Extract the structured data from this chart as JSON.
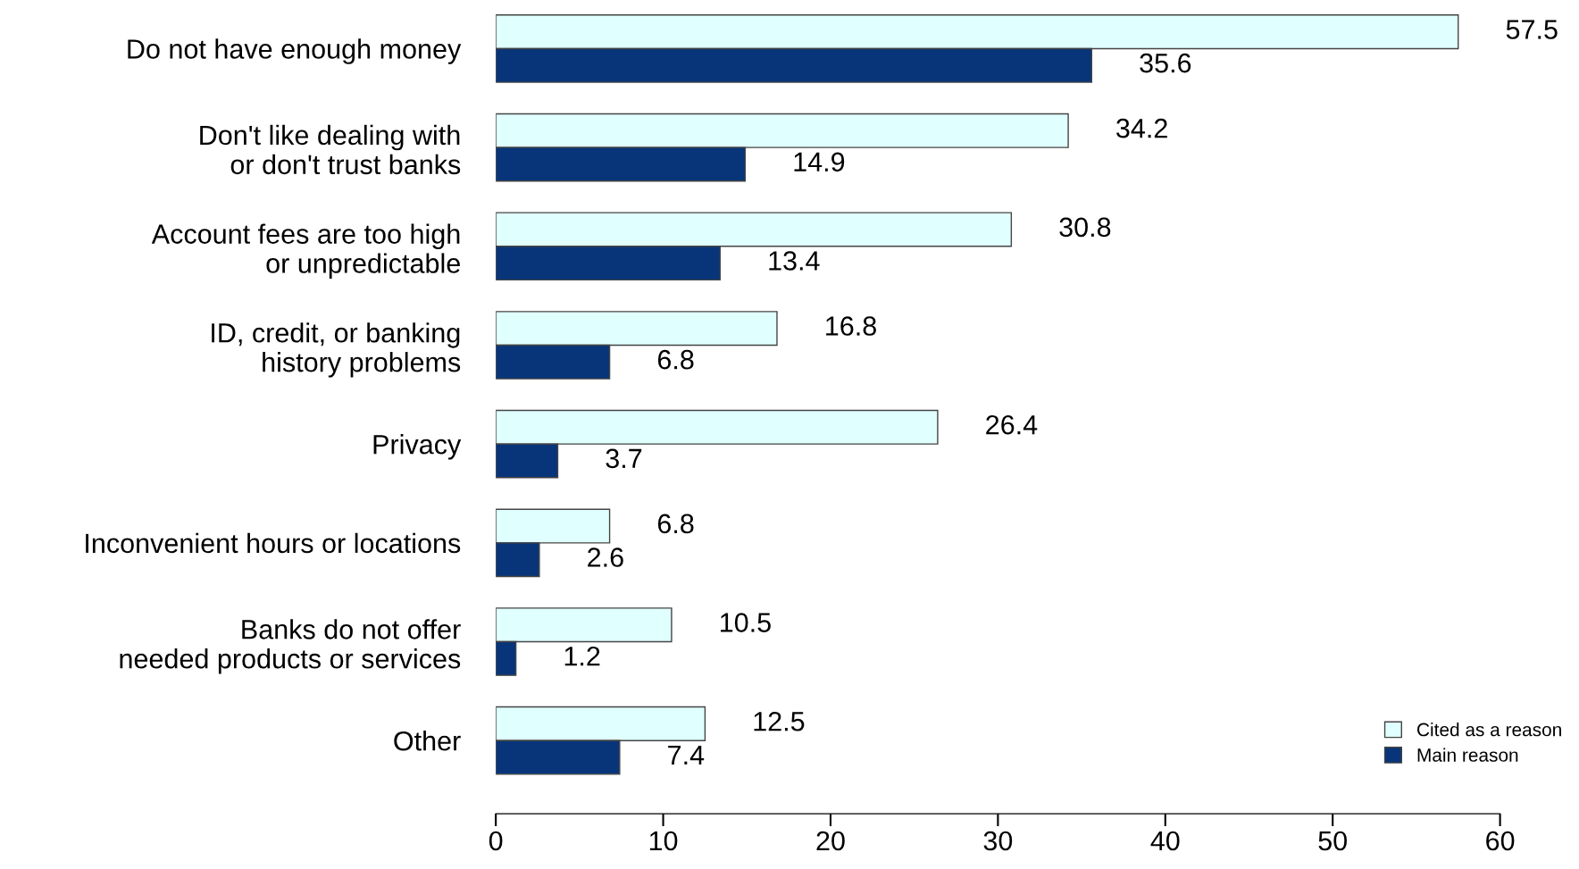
{
  "chart_data": {
    "type": "bar",
    "orientation": "horizontal",
    "categories": [
      "Do not have enough money",
      "Don't like dealing with\nor don't trust banks",
      "Account fees are too high\nor unpredictable",
      "ID, credit, or banking\nhistory problems",
      "Privacy",
      "Inconvenient hours or locations",
      "Banks do not offer\nneeded products or services",
      "Other"
    ],
    "series": [
      {
        "name": "Cited as a reason",
        "color": "#e0ffff",
        "values": [
          57.5,
          34.2,
          30.8,
          16.8,
          26.4,
          6.8,
          10.5,
          12.5
        ]
      },
      {
        "name": "Main reason",
        "color": "#08357a",
        "values": [
          35.6,
          14.9,
          13.4,
          6.8,
          3.7,
          2.6,
          1.2,
          7.4
        ]
      }
    ],
    "xlim": [
      0,
      60
    ],
    "xticks": [
      0,
      10,
      20,
      30,
      40,
      50,
      60
    ],
    "data_labels": true,
    "grid": false,
    "legend": "bottom right"
  }
}
